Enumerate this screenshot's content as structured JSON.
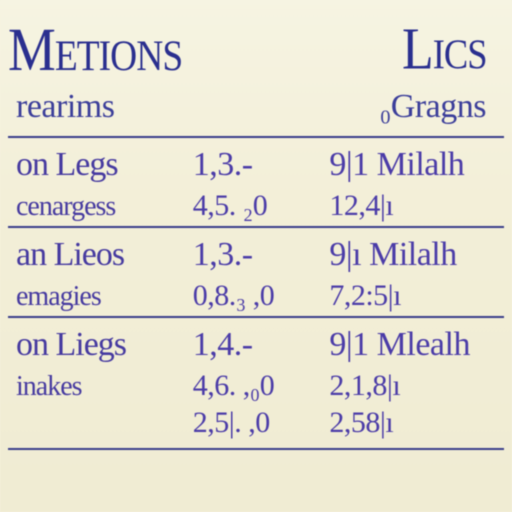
{
  "title": {
    "left": "Metions",
    "right": "Lics"
  },
  "subtitle": {
    "left": "rearims",
    "right": "₀Gragns"
  },
  "groups": [
    {
      "rows": [
        {
          "label_left": "on Legs",
          "val_left": "1,3.-",
          "val_right": "9|1 Milalh"
        },
        {
          "label_left": "cenargess",
          "val_left": "4,5. ₂0",
          "val_right": "12,4|ı"
        }
      ]
    },
    {
      "rows": [
        {
          "label_left": "an Lieos",
          "val_left": "1,3.-",
          "val_right": "9|ı Milalh"
        },
        {
          "label_left": "emagies",
          "val_left": "0,8.₃ ,0",
          "val_right": "7,2:5|ı"
        }
      ]
    },
    {
      "rows": [
        {
          "label_left": "on Liegs",
          "val_left": "1,4.-",
          "val_right": "9|1 Mlealh"
        },
        {
          "label_left": "inakes",
          "val_left": "4,6. ,₀0",
          "val_right": "2,1,8|ı"
        },
        {
          "label_left": "",
          "val_left": "2,5|. ,0",
          "val_right": "2,58|ı"
        }
      ]
    }
  ]
}
